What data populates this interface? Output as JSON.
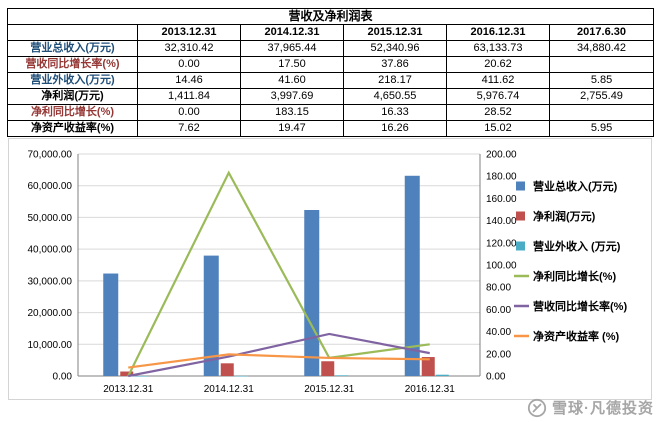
{
  "table": {
    "title": "营收及净利润表",
    "columns": [
      "",
      "2013.12.31",
      "2014.12.31",
      "2015.12.31",
      "2016.12.31",
      "2017.6.30"
    ],
    "rows": [
      {
        "label": "营业总收入(万元)",
        "color": "#1F4E79",
        "values": [
          "32,310.42",
          "37,965.44",
          "52,340.96",
          "63,133.73",
          "34,880.42"
        ]
      },
      {
        "label": "营收同比增长率(%)",
        "color": "#953735",
        "values": [
          "0.00",
          "17.50",
          "37.86",
          "20.62",
          ""
        ]
      },
      {
        "label": "营业外收入(万元)",
        "color": "#1F4E79",
        "values": [
          "14.46",
          "41.60",
          "218.17",
          "411.62",
          "5.85"
        ]
      },
      {
        "label": "净利润(万元)",
        "color": "#000000",
        "values": [
          "1,411.84",
          "3,997.69",
          "4,650.55",
          "5,976.74",
          "2,755.49"
        ]
      },
      {
        "label": "净利同比增长(%)",
        "color": "#953735",
        "values": [
          "0.00",
          "183.15",
          "16.33",
          "28.52",
          ""
        ]
      },
      {
        "label": "净资产收益率(%)",
        "color": "#000000",
        "values": [
          "7.62",
          "19.47",
          "16.26",
          "15.02",
          "5.95"
        ]
      }
    ]
  },
  "chart_data": {
    "type": "bar",
    "categories": [
      "2013.12.31",
      "2014.12.31",
      "2015.12.31",
      "2016.12.31"
    ],
    "left_axis": {
      "min": 0,
      "max": 70000,
      "step": 10000
    },
    "right_axis": {
      "min": 0,
      "max": 200,
      "step": 20
    },
    "grid": true,
    "legend_position": "right",
    "bar_series": [
      {
        "name": "营业总收入(万元)",
        "color": "#4F81BD",
        "axis": "left",
        "values": [
          32310.42,
          37965.44,
          52340.96,
          63133.73
        ]
      },
      {
        "name": "净利润(万元)",
        "color": "#C0504D",
        "axis": "left",
        "values": [
          1411.84,
          3997.69,
          4650.55,
          5976.74
        ]
      },
      {
        "name": "营业外收入 (万元)",
        "color": "#4BACC6",
        "axis": "left",
        "values": [
          14.46,
          41.6,
          218.17,
          411.62
        ]
      }
    ],
    "line_series": [
      {
        "name": "净利同比增长(%)",
        "color": "#9BBB59",
        "axis": "right",
        "values": [
          0.0,
          183.15,
          16.33,
          28.52
        ]
      },
      {
        "name": "营收同比增长率(%)",
        "color": "#8064A2",
        "axis": "right",
        "values": [
          0.0,
          17.5,
          37.86,
          20.62
        ]
      },
      {
        "name": "净资产收益率 (%)",
        "color": "#F79646",
        "axis": "right",
        "values": [
          7.62,
          19.47,
          16.26,
          15.02
        ]
      }
    ]
  },
  "watermark": {
    "text": "雪球·凡德投资"
  }
}
